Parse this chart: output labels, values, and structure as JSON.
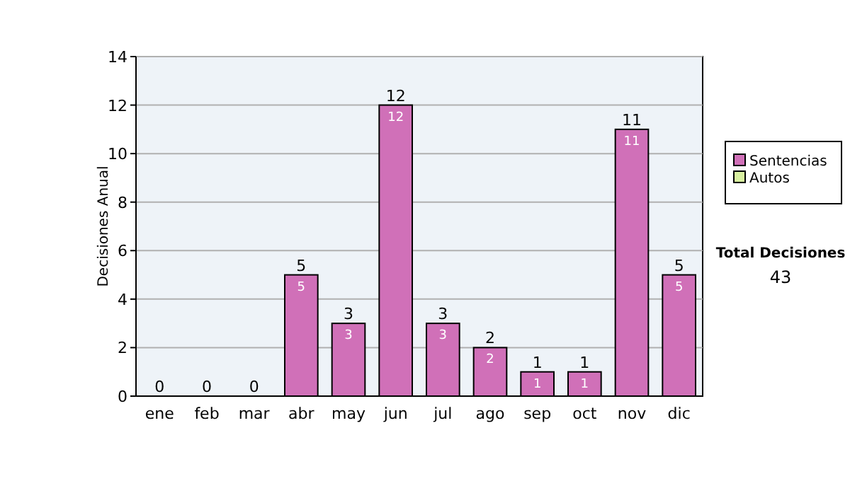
{
  "chart_data": {
    "type": "bar",
    "stacked": true,
    "ylabel": "Decisiones Anual",
    "categories": [
      "ene",
      "feb",
      "mar",
      "abr",
      "may",
      "jun",
      "jul",
      "ago",
      "sep",
      "oct",
      "nov",
      "dic"
    ],
    "series": [
      {
        "name": "Sentencias",
        "color": "#d070b8",
        "values": [
          0,
          0,
          0,
          5,
          3,
          12,
          3,
          2,
          1,
          1,
          11,
          5
        ],
        "value_labels": [
          null,
          null,
          null,
          "5",
          "3",
          "12",
          "3",
          "2",
          "1",
          "1",
          "11",
          "5"
        ]
      },
      {
        "name": "Autos",
        "color": "#d8f0a0",
        "values": [
          0,
          0,
          0,
          0,
          0,
          0,
          0,
          0,
          0,
          0,
          0,
          0
        ]
      }
    ],
    "totals": [
      "0",
      "0",
      "0",
      "5",
      "3",
      "12",
      "3",
      "2",
      "1",
      "1",
      "11",
      "5"
    ],
    "ylim": [
      0,
      14
    ],
    "yticks": [
      0,
      2,
      4,
      6,
      8,
      10,
      12,
      14
    ],
    "grid": "y",
    "legend": "right",
    "annotations": [
      "Total Decisiones",
      "43"
    ]
  }
}
